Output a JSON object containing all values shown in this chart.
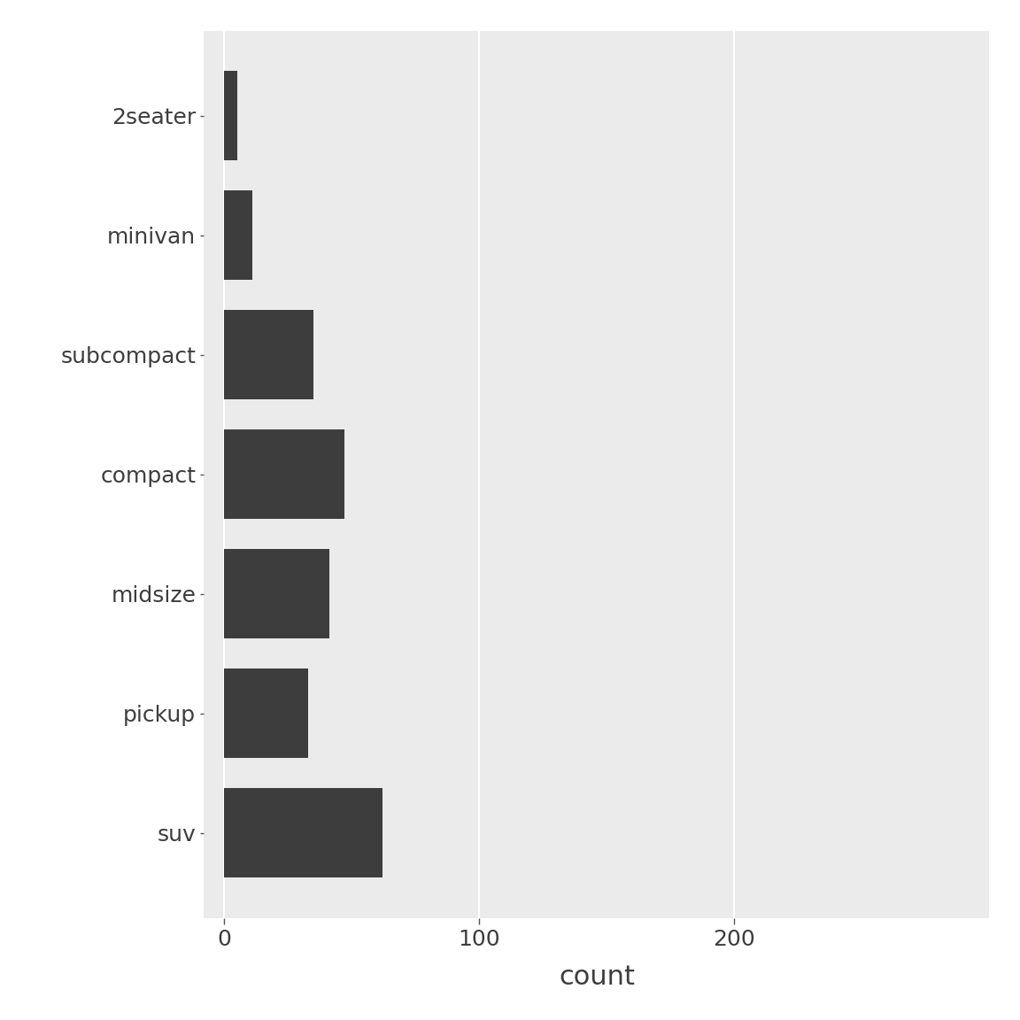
{
  "categories": [
    "2seater",
    "minivan",
    "subcompact",
    "compact",
    "midsize",
    "pickup",
    "suv"
  ],
  "values": [
    5,
    11,
    35,
    47,
    41,
    33,
    62
  ],
  "bar_color": "#3d3d3d",
  "background_color": "#ebebeb",
  "plot_bg_color": "#ebebeb",
  "xlabel": "count",
  "xlim": [
    -8,
    300
  ],
  "xticks": [
    0,
    100,
    200
  ],
  "grid_color": "#ffffff",
  "label_fontsize": 22,
  "tick_fontsize": 18,
  "bar_height": 0.75,
  "white_margin": "#f2f2f2"
}
